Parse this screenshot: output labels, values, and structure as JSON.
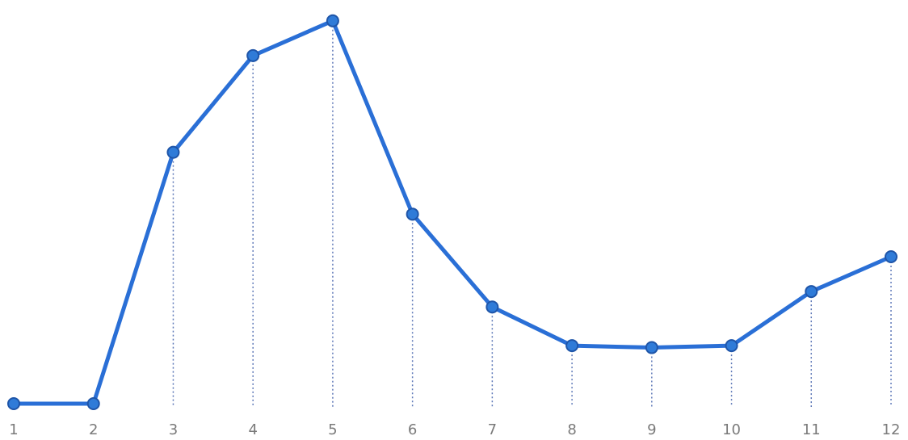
{
  "chart_data": {
    "type": "line",
    "title": "",
    "xlabel": "",
    "ylabel": "",
    "categories": [
      "1",
      "2",
      "3",
      "4",
      "5",
      "6",
      "7",
      "8",
      "9",
      "10",
      "11",
      "12"
    ],
    "series": [
      {
        "values": [
          0,
          0,
          65,
          90,
          99,
          49,
          25,
          15,
          14.5,
          15,
          29,
          38
        ]
      }
    ],
    "ylim": [
      0,
      100
    ],
    "grid": false,
    "legend": "none",
    "y_axis_visible": false,
    "x_tick_labels_visible": true,
    "guide_lines": "dotted vertical drop lines from each point to the x-axis"
  },
  "colors": {
    "line": "#2a6fd6",
    "marker_fill": "#2f7bd8",
    "marker_stroke": "#1f55a8",
    "guide": "#5f79b8",
    "tick_label": "#7a7a7a",
    "background": "#ffffff"
  }
}
